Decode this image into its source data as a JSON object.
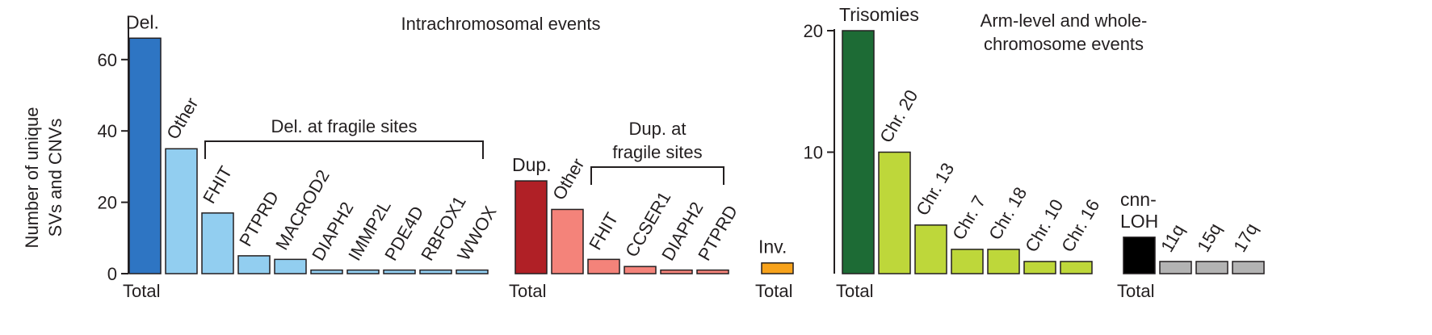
{
  "chart_data": [
    {
      "type": "bar",
      "title": "Intrachromosomal events",
      "ylabel": "Number of unique\nSVs and CNVs",
      "ylim": [
        0,
        68
      ],
      "yticks": [
        0,
        20,
        40,
        60
      ],
      "groups": [
        {
          "group_label": "Total",
          "bars": [
            {
              "label": "Del.",
              "value": 66,
              "color": "#2e75c3",
              "orientation": "horizontal"
            },
            {
              "label": "Other",
              "value": 35,
              "color": "#92cef0",
              "orientation": "rotated"
            },
            {
              "label": "FHIT",
              "value": 17,
              "color": "#92cef0",
              "orientation": "rotated"
            },
            {
              "label": "PTPRD",
              "value": 5,
              "color": "#92cef0",
              "orientation": "rotated"
            },
            {
              "label": "MACROD2",
              "value": 4,
              "color": "#92cef0",
              "orientation": "rotated"
            },
            {
              "label": "DIAPH2",
              "value": 1,
              "color": "#92cef0",
              "orientation": "rotated"
            },
            {
              "label": "IMMP2L",
              "value": 1,
              "color": "#92cef0",
              "orientation": "rotated"
            },
            {
              "label": "PDE4D",
              "value": 1,
              "color": "#92cef0",
              "orientation": "rotated"
            },
            {
              "label": "RBFOX1",
              "value": 1,
              "color": "#92cef0",
              "orientation": "rotated"
            },
            {
              "label": "WWOX",
              "value": 1,
              "color": "#92cef0",
              "orientation": "rotated"
            }
          ],
          "bracket": {
            "label_lines": [
              "Del. at fragile sites"
            ],
            "from_bar": 2,
            "to_bar": 9
          }
        },
        {
          "group_label": "Total",
          "bars": [
            {
              "label": "Dup.",
              "value": 26,
              "color": "#b02026",
              "orientation": "horizontal"
            },
            {
              "label": "Other",
              "value": 18,
              "color": "#f4837a",
              "orientation": "rotated"
            },
            {
              "label": "FHIT",
              "value": 4,
              "color": "#f4837a",
              "orientation": "rotated"
            },
            {
              "label": "CCSER1",
              "value": 2,
              "color": "#f4837a",
              "orientation": "rotated"
            },
            {
              "label": "DIAPH2",
              "value": 1,
              "color": "#f4837a",
              "orientation": "rotated"
            },
            {
              "label": "PTPRD",
              "value": 1,
              "color": "#f4837a",
              "orientation": "rotated"
            }
          ],
          "bracket": {
            "label_lines": [
              "Dup. at",
              "fragile sites"
            ],
            "from_bar": 2,
            "to_bar": 5
          }
        },
        {
          "group_label": "Total",
          "bars": [
            {
              "label": "Inv.",
              "value": 3,
              "color": "#f7a21b",
              "orientation": "horizontal"
            }
          ]
        }
      ]
    },
    {
      "type": "bar",
      "title": "Arm-level and whole-\nchromosome events",
      "ylim": [
        0,
        20
      ],
      "yticks": [
        10,
        20
      ],
      "groups": [
        {
          "group_label": "Total",
          "bars": [
            {
              "label": "Trisomies",
              "value": 20,
              "color": "#1d6b35",
              "orientation": "horizontal"
            },
            {
              "label": "Chr. 20",
              "value": 10,
              "color": "#bed73a",
              "orientation": "rotated"
            },
            {
              "label": "Chr. 13",
              "value": 4,
              "color": "#bed73a",
              "orientation": "rotated"
            },
            {
              "label": "Chr. 7",
              "value": 2,
              "color": "#bed73a",
              "orientation": "rotated"
            },
            {
              "label": "Chr. 18",
              "value": 2,
              "color": "#bed73a",
              "orientation": "rotated"
            },
            {
              "label": "Chr. 10",
              "value": 1,
              "color": "#bed73a",
              "orientation": "rotated"
            },
            {
              "label": "Chr. 16",
              "value": 1,
              "color": "#bed73a",
              "orientation": "rotated"
            }
          ]
        },
        {
          "group_label": "Total",
          "bars": [
            {
              "label": "cnn-\nLOH",
              "value": 3,
              "color": "#000000",
              "orientation": "horizontal"
            },
            {
              "label": "11q",
              "value": 1,
              "color": "#b3b3b3",
              "orientation": "rotated"
            },
            {
              "label": "15q",
              "value": 1,
              "color": "#b3b3b3",
              "orientation": "rotated"
            },
            {
              "label": "17q",
              "value": 1,
              "color": "#b3b3b3",
              "orientation": "rotated"
            }
          ]
        }
      ]
    }
  ]
}
